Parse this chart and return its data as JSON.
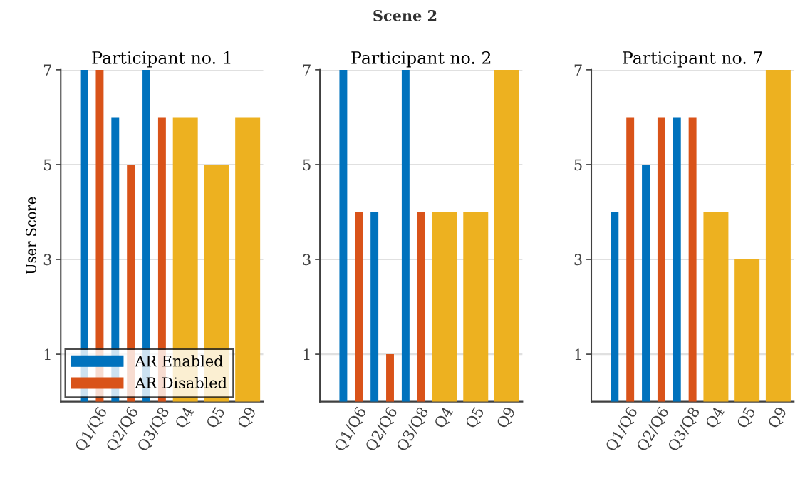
{
  "chart_data": [
    {
      "type": "bar",
      "title": "Participant no. 1",
      "ylabel": "User Score",
      "annotations": [
        "Scene 2"
      ],
      "categories": [
        "Q1/Q6",
        "Q2/Q6",
        "Q3/Q8",
        "Q4",
        "Q5",
        "Q9"
      ],
      "ylim": [
        0,
        7
      ],
      "yticks": [
        1,
        3,
        5,
        7
      ],
      "grid": "y",
      "legend": "bottom left",
      "series": [
        {
          "name": "AR Enabled",
          "color": "#0072bd",
          "values": [
            7,
            6,
            7,
            null,
            null,
            null
          ]
        },
        {
          "name": "AR Disabled",
          "color": "#d95319",
          "values": [
            7,
            5,
            6,
            null,
            null,
            null
          ]
        },
        {
          "color": "#edb120",
          "values": [
            null,
            null,
            null,
            6,
            5,
            6
          ]
        }
      ]
    },
    {
      "type": "bar",
      "title": "Participant no. 2",
      "categories": [
        "Q1/Q6",
        "Q2/Q6",
        "Q3/Q8",
        "Q4",
        "Q5",
        "Q9"
      ],
      "ylim": [
        0,
        7
      ],
      "yticks": [
        1,
        3,
        5,
        7
      ],
      "grid": "y",
      "series": [
        {
          "color": "#0072bd",
          "values": [
            7,
            4,
            7,
            null,
            null,
            null
          ]
        },
        {
          "color": "#d95319",
          "values": [
            4,
            1,
            4,
            null,
            null,
            null
          ]
        },
        {
          "color": "#edb120",
          "values": [
            null,
            null,
            null,
            4,
            4,
            7
          ]
        }
      ]
    },
    {
      "type": "bar",
      "title": "Participant no. 7",
      "categories": [
        "Q1/Q6",
        "Q2/Q6",
        "Q3/Q8",
        "Q4",
        "Q5",
        "Q9"
      ],
      "ylim": [
        0,
        7
      ],
      "yticks": [
        1,
        3,
        5,
        7
      ],
      "grid": "y",
      "series": [
        {
          "color": "#0072bd",
          "values": [
            4,
            5,
            6,
            null,
            null,
            null
          ]
        },
        {
          "color": "#d95319",
          "values": [
            6,
            6,
            6,
            null,
            null,
            null
          ]
        },
        {
          "color": "#edb120",
          "values": [
            null,
            null,
            null,
            4,
            3,
            7
          ]
        }
      ]
    }
  ]
}
